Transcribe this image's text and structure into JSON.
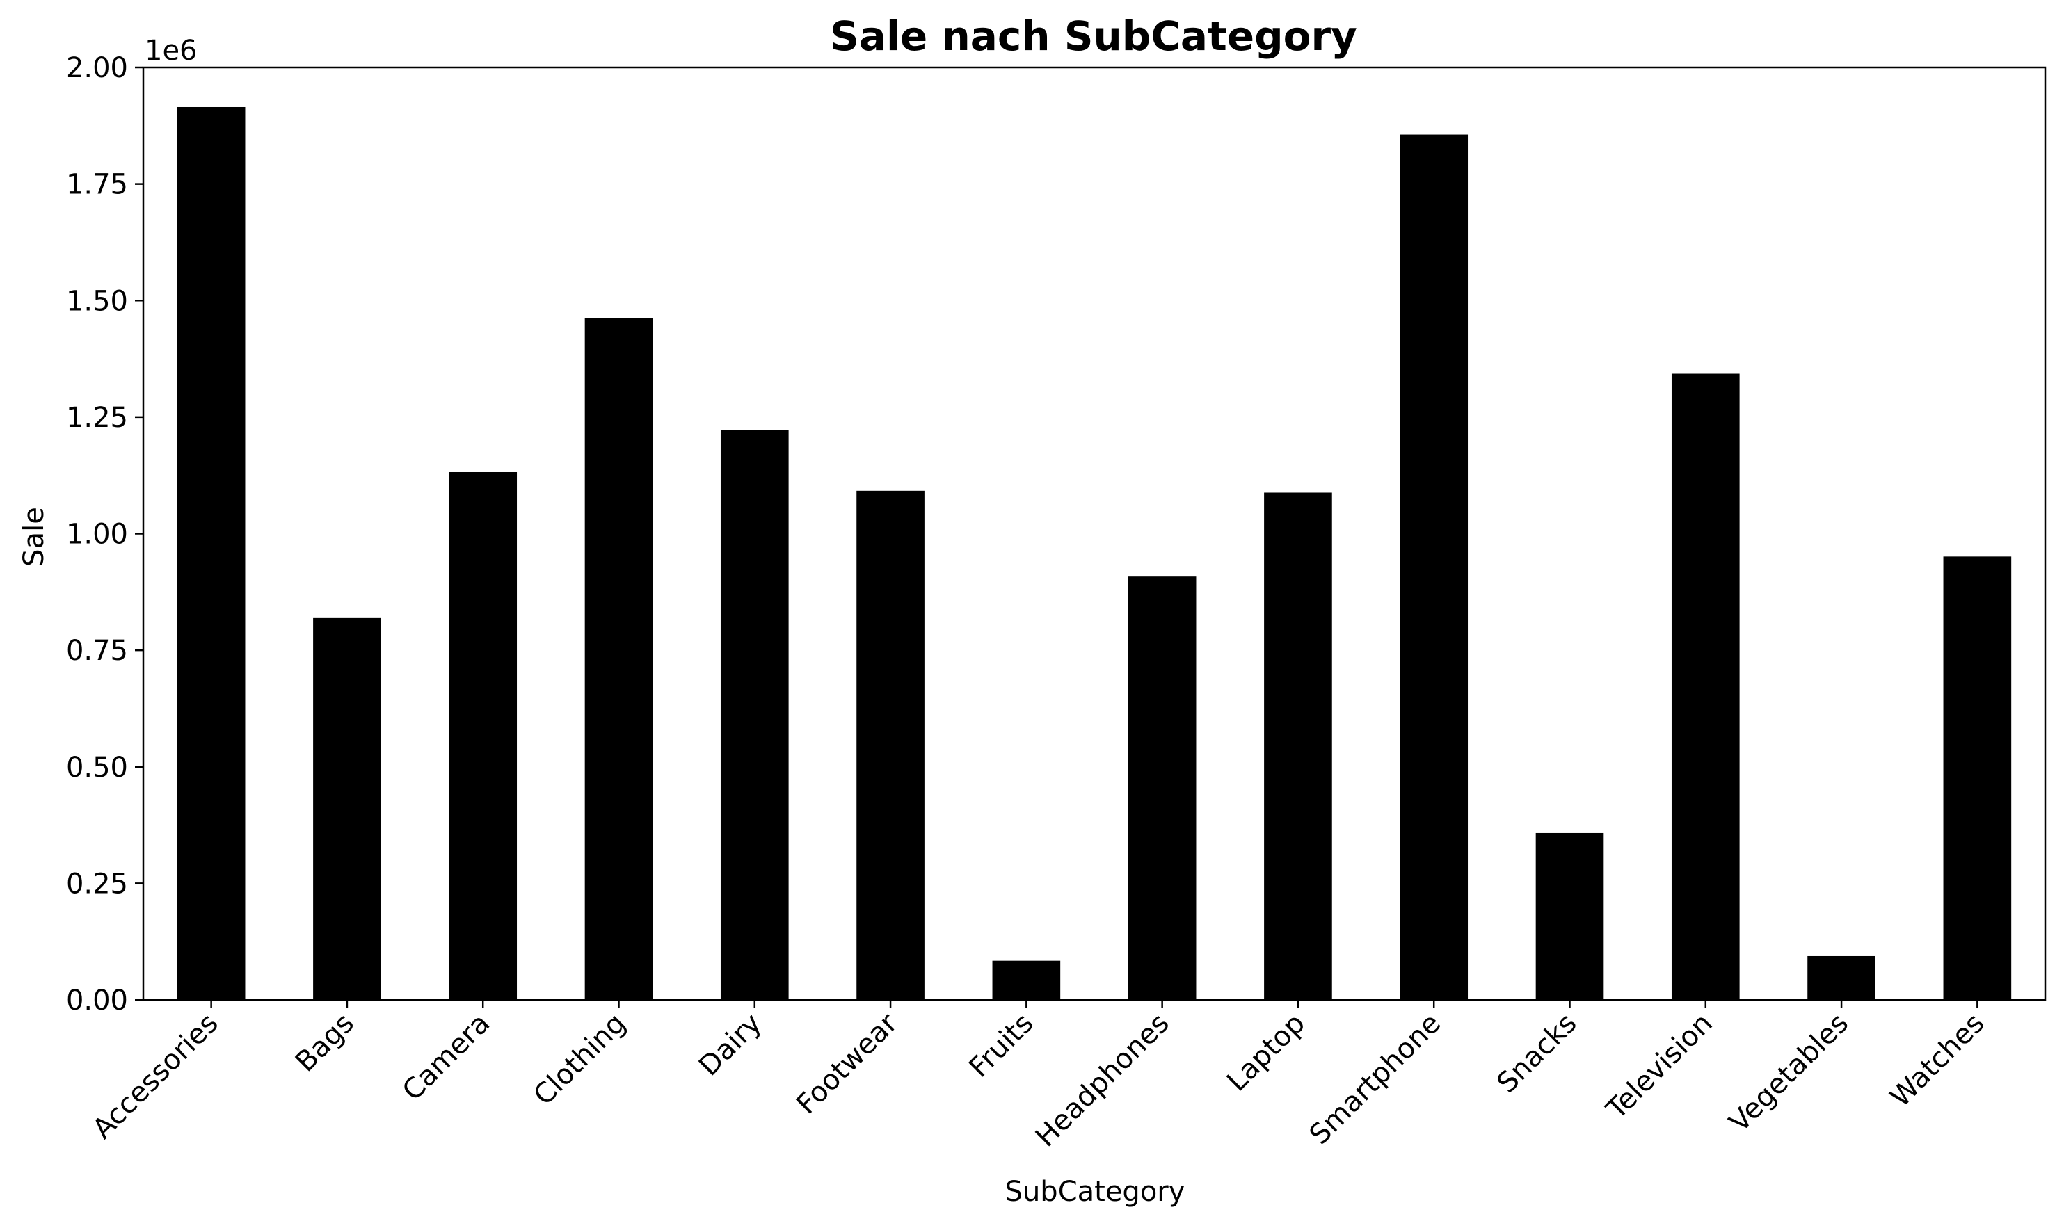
{
  "chart_data": {
    "type": "bar",
    "title": "Sale nach SubCategory",
    "xlabel": "SubCategory",
    "ylabel": "Sale",
    "y_offset_label": "1e6",
    "categories": [
      "Accessories",
      "Bags",
      "Camera",
      "Clothing",
      "Dairy",
      "Footwear",
      "Fruits",
      "Headphones",
      "Laptop",
      "Smartphone",
      "Snacks",
      "Television",
      "Vegetables",
      "Watches"
    ],
    "values": [
      1915000,
      819000,
      1132000,
      1462000,
      1222000,
      1092000,
      84000,
      908000,
      1088000,
      1856000,
      358000,
      1343000,
      94000,
      951000
    ],
    "ylim": [
      0,
      2000000
    ],
    "yticks": [
      0,
      250000,
      500000,
      750000,
      1000000,
      1250000,
      1500000,
      1750000,
      2000000
    ],
    "ytick_labels": [
      "0.00",
      "0.25",
      "0.50",
      "0.75",
      "1.00",
      "1.25",
      "1.50",
      "1.75",
      "2.00"
    ],
    "bar_color": "#000000",
    "grid": false,
    "legend": "none",
    "xtick_rotation_degrees": 45
  }
}
